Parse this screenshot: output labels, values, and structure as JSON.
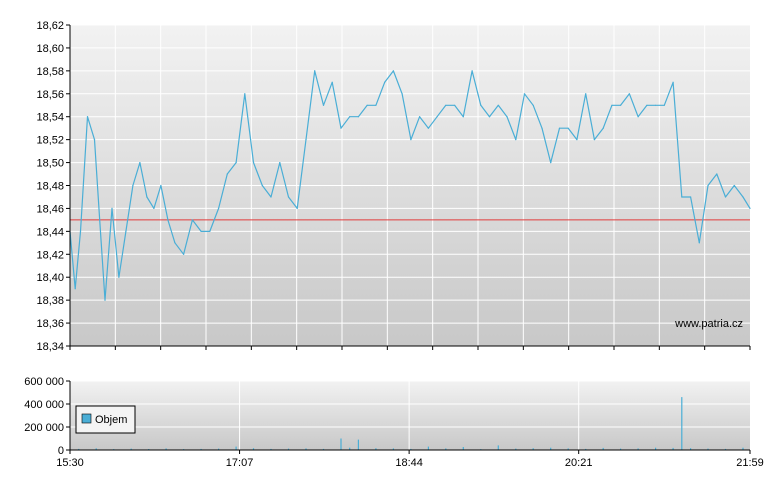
{
  "watermark": "www.patria.cz",
  "colors": {
    "price_line": "#4aaed6",
    "reference_line": "#e23b3b",
    "volume_bar": "#4aaed6",
    "grid": "#ffffff",
    "plot_bg_top": "#f2f2f2",
    "plot_bg_bottom": "#c8c8c8",
    "axis": "#000000"
  },
  "chart_data": [
    {
      "type": "line",
      "title": "",
      "xlabel": "",
      "ylabel": "",
      "xlim": [
        "15:30",
        "21:59"
      ],
      "ylim": [
        18.34,
        18.62
      ],
      "y_ticks": [
        "18,34",
        "18,36",
        "18,38",
        "18,40",
        "18,42",
        "18,44",
        "18,46",
        "18,48",
        "18,50",
        "18,52",
        "18,54",
        "18,56",
        "18,58",
        "18,60",
        "18,62"
      ],
      "grid": true,
      "reference_line": 18.45,
      "x": [
        "15:30",
        "15:33",
        "15:36",
        "15:40",
        "15:44",
        "15:47",
        "15:50",
        "15:54",
        "15:58",
        "16:02",
        "16:06",
        "16:10",
        "16:14",
        "16:18",
        "16:22",
        "16:26",
        "16:30",
        "16:35",
        "16:40",
        "16:45",
        "16:50",
        "16:55",
        "17:00",
        "17:05",
        "17:10",
        "17:15",
        "17:20",
        "17:25",
        "17:30",
        "17:35",
        "17:40",
        "17:45",
        "17:50",
        "17:55",
        "18:00",
        "18:05",
        "18:10",
        "18:15",
        "18:20",
        "18:25",
        "18:30",
        "18:35",
        "18:40",
        "18:45",
        "18:50",
        "18:55",
        "19:00",
        "19:05",
        "19:10",
        "19:15",
        "19:20",
        "19:25",
        "19:30",
        "19:35",
        "19:40",
        "19:45",
        "19:50",
        "19:55",
        "20:00",
        "20:05",
        "20:10",
        "20:15",
        "20:20",
        "20:25",
        "20:30",
        "20:35",
        "20:40",
        "20:45",
        "20:50",
        "20:55",
        "21:00",
        "21:05",
        "21:10",
        "21:15",
        "21:20",
        "21:25",
        "21:30",
        "21:35",
        "21:40",
        "21:45",
        "21:50",
        "21:55",
        "21:59"
      ],
      "values": [
        18.44,
        18.39,
        18.44,
        18.54,
        18.52,
        18.45,
        18.38,
        18.46,
        18.4,
        18.44,
        18.48,
        18.5,
        18.47,
        18.46,
        18.48,
        18.45,
        18.43,
        18.42,
        18.45,
        18.44,
        18.44,
        18.46,
        18.49,
        18.5,
        18.56,
        18.5,
        18.48,
        18.47,
        18.5,
        18.47,
        18.46,
        18.52,
        18.58,
        18.55,
        18.57,
        18.53,
        18.54,
        18.54,
        18.55,
        18.55,
        18.57,
        18.58,
        18.56,
        18.52,
        18.54,
        18.53,
        18.54,
        18.55,
        18.55,
        18.54,
        18.58,
        18.55,
        18.54,
        18.55,
        18.54,
        18.52,
        18.56,
        18.55,
        18.53,
        18.5,
        18.53,
        18.53,
        18.52,
        18.56,
        18.52,
        18.53,
        18.55,
        18.55,
        18.56,
        18.54,
        18.55,
        18.55,
        18.55,
        18.57,
        18.47,
        18.47,
        18.43,
        18.48,
        18.49,
        18.47,
        18.48,
        18.47,
        18.46
      ]
    },
    {
      "type": "bar",
      "title": "",
      "xlabel": "",
      "ylabel": "",
      "legend": [
        "Objem"
      ],
      "legend_position": "top-left",
      "xlim": [
        "15:30",
        "21:59"
      ],
      "x_ticks": [
        "15:30",
        "17:07",
        "18:44",
        "20:21",
        "21:59"
      ],
      "ylim": [
        0,
        600000
      ],
      "y_ticks": [
        "0",
        "200 000",
        "400 000",
        "600 000"
      ],
      "grid": true,
      "series": [
        {
          "name": "Objem",
          "x": [
            "15:35",
            "15:45",
            "15:55",
            "16:05",
            "16:15",
            "16:25",
            "16:35",
            "16:45",
            "16:55",
            "17:05",
            "17:15",
            "17:25",
            "17:35",
            "17:45",
            "17:55",
            "18:05",
            "18:10",
            "18:15",
            "18:25",
            "18:35",
            "18:45",
            "18:55",
            "19:05",
            "19:15",
            "19:25",
            "19:35",
            "19:45",
            "19:55",
            "20:05",
            "20:15",
            "20:25",
            "20:35",
            "20:45",
            "20:55",
            "21:05",
            "21:15",
            "21:20",
            "21:25",
            "21:35",
            "21:45",
            "21:55"
          ],
          "values": [
            10000,
            15000,
            8000,
            12000,
            9000,
            14000,
            8000,
            10000,
            12000,
            30000,
            16000,
            10000,
            12000,
            14000,
            10000,
            100000,
            20000,
            90000,
            16000,
            14000,
            10000,
            30000,
            14000,
            26000,
            8000,
            40000,
            12000,
            16000,
            20000,
            14000,
            10000,
            18000,
            12000,
            14000,
            20000,
            18000,
            460000,
            16000,
            12000,
            10000,
            20000
          ]
        }
      ]
    }
  ]
}
